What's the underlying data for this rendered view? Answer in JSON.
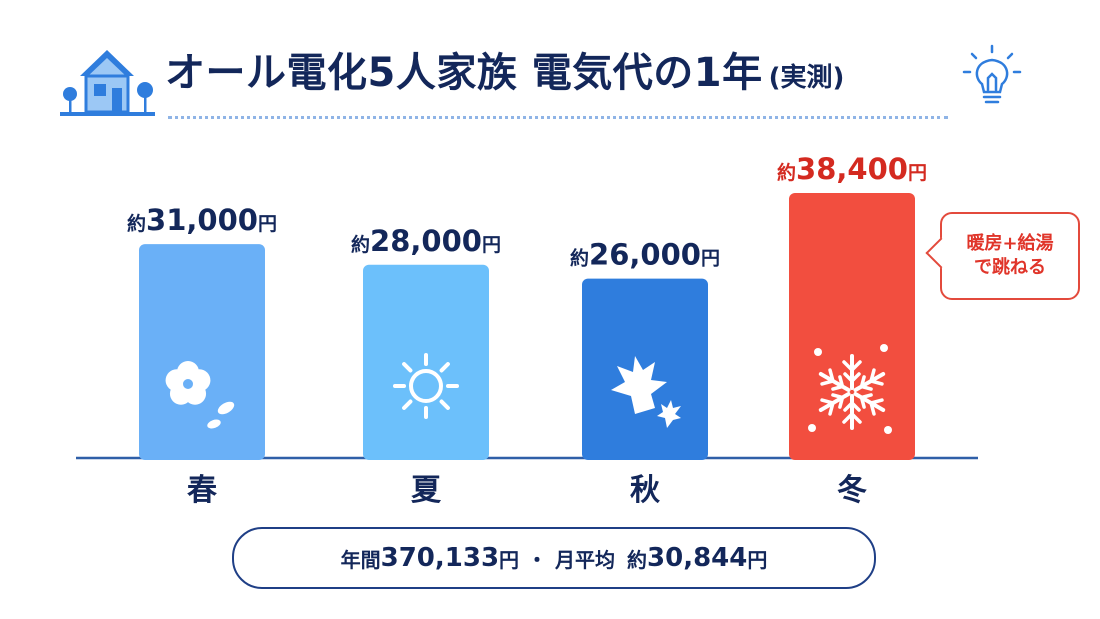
{
  "title": {
    "main": "オール電化5人家族 電気代の1年",
    "sub": "(実測)"
  },
  "icons": {
    "header_left": "house-with-trees-icon",
    "header_right": "light-bulb-icon",
    "spring": "cherry-blossom-icon",
    "summer": "sun-icon",
    "autumn": "maple-leaf-icon",
    "winter": "snowflake-icon"
  },
  "colors": {
    "spring": "#6ab0f7",
    "summer": "#6cc0fb",
    "autumn": "#2f7ddd",
    "winter": "#f24e3f",
    "highlight_text": "#d42a20",
    "text": "#13275a"
  },
  "callout": {
    "line1": "暖房+給湯",
    "line2": "で跳ねる"
  },
  "summary": {
    "annual_prefix": "年間",
    "annual_value": "370,133",
    "annual_unit": "円",
    "separator": "・",
    "monthly_prefix": "月平均",
    "monthly_approx": "約",
    "monthly_value": "30,844",
    "monthly_unit": "円"
  },
  "chart_data": {
    "type": "bar",
    "title": "オール電化5人家族 電気代の1年",
    "categories": [
      "春",
      "夏",
      "秋",
      "冬"
    ],
    "values": [
      31000,
      28000,
      26000,
      38400
    ],
    "value_labels": [
      "31,000",
      "28,000",
      "26,000",
      "38,400"
    ],
    "label_prefix": "約",
    "label_unit": "円",
    "highlight_index": 3,
    "ylim": [
      0,
      40000
    ],
    "grid": false,
    "legend": "none"
  }
}
